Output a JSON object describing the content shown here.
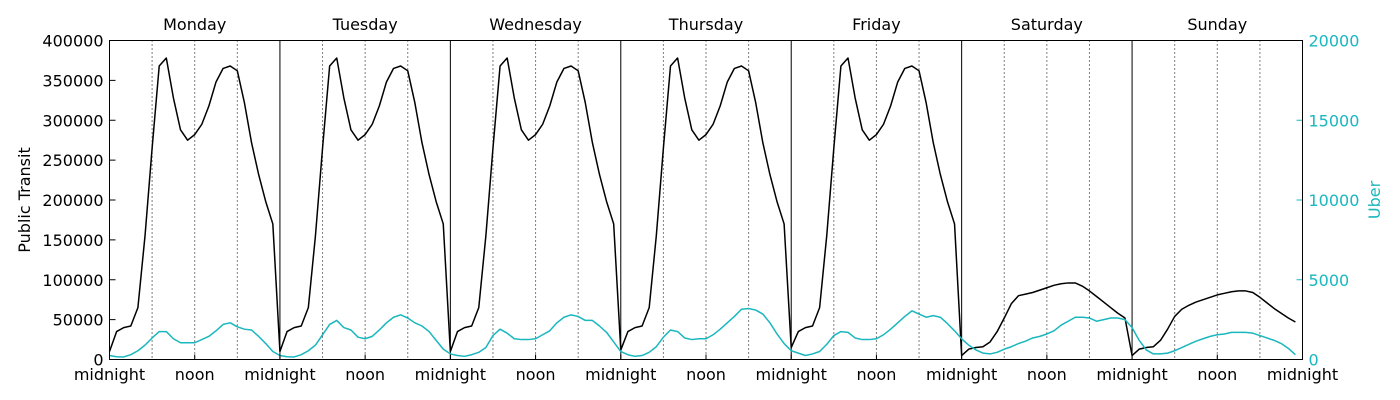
{
  "chart_data": {
    "type": "line",
    "days": [
      "Monday",
      "Tuesday",
      "Wednesday",
      "Thursday",
      "Friday",
      "Saturday",
      "Sunday"
    ],
    "hours_per_day": 24,
    "x_tick_labels": [
      "midnight",
      "noon",
      "midnight",
      "noon",
      "midnight",
      "noon",
      "midnight",
      "noon",
      "midnight",
      "noon",
      "midnight",
      "noon",
      "midnight",
      "noon",
      "midnight"
    ],
    "y_left": {
      "label": "Public Transit",
      "lim": [
        0,
        400000
      ],
      "ticks": [
        0,
        50000,
        100000,
        150000,
        200000,
        250000,
        300000,
        350000,
        400000
      ],
      "color": "#000000"
    },
    "y_right": {
      "label": "Uber",
      "lim": [
        0,
        20000
      ],
      "ticks": [
        0,
        5000,
        10000,
        15000,
        20000
      ],
      "color": "#1ab7bf"
    },
    "series": [
      {
        "name": "Public Transit",
        "axis": "left",
        "color": "#000000",
        "values": [
          10000,
          35000,
          40000,
          42000,
          65000,
          155000,
          265000,
          368000,
          378000,
          328000,
          288000,
          275000,
          282000,
          295000,
          318000,
          348000,
          365000,
          368000,
          362000,
          322000,
          272000,
          232000,
          198000,
          170000,
          10000,
          35000,
          40000,
          42000,
          65000,
          155000,
          265000,
          368000,
          378000,
          328000,
          288000,
          275000,
          282000,
          295000,
          318000,
          348000,
          365000,
          368000,
          362000,
          322000,
          272000,
          232000,
          198000,
          170000,
          10000,
          35000,
          40000,
          42000,
          65000,
          155000,
          265000,
          368000,
          378000,
          328000,
          288000,
          275000,
          282000,
          295000,
          318000,
          348000,
          365000,
          368000,
          362000,
          322000,
          272000,
          232000,
          198000,
          170000,
          12000,
          35000,
          40000,
          42000,
          65000,
          155000,
          265000,
          368000,
          378000,
          328000,
          288000,
          275000,
          282000,
          295000,
          318000,
          348000,
          365000,
          368000,
          362000,
          322000,
          272000,
          232000,
          198000,
          170000,
          15000,
          35000,
          40000,
          42000,
          65000,
          155000,
          265000,
          368000,
          378000,
          328000,
          288000,
          275000,
          282000,
          295000,
          318000,
          348000,
          365000,
          368000,
          362000,
          322000,
          272000,
          232000,
          198000,
          170000,
          5000,
          13000,
          15000,
          16000,
          22000,
          35000,
          52000,
          70000,
          80000,
          82000,
          84000,
          87000,
          90000,
          93000,
          95000,
          96000,
          96000,
          92000,
          86000,
          79000,
          72000,
          65000,
          58000,
          52000,
          5000,
          13000,
          15000,
          16000,
          24000,
          38000,
          54000,
          63000,
          68000,
          72000,
          75000,
          78000,
          81000,
          83000,
          85000,
          86000,
          86000,
          84000,
          78000,
          71000,
          64000,
          58000,
          52000,
          47000
        ]
      },
      {
        "name": "Uber",
        "axis": "right",
        "color": "#1ab7bf",
        "values": [
          250,
          170,
          160,
          300,
          550,
          900,
          1350,
          1750,
          1750,
          1300,
          1050,
          1050,
          1050,
          1250,
          1450,
          1800,
          2200,
          2300,
          2050,
          1900,
          1850,
          1450,
          1000,
          500,
          250,
          170,
          160,
          300,
          550,
          900,
          1550,
          2200,
          2450,
          2000,
          1850,
          1400,
          1300,
          1450,
          1850,
          2300,
          2650,
          2800,
          2600,
          2300,
          2100,
          1750,
          1200,
          650,
          350,
          250,
          200,
          300,
          450,
          750,
          1500,
          1900,
          1650,
          1300,
          1250,
          1250,
          1300,
          1550,
          1800,
          2300,
          2650,
          2800,
          2700,
          2450,
          2450,
          2100,
          1700,
          1100,
          500,
          300,
          200,
          250,
          450,
          800,
          1400,
          1850,
          1750,
          1350,
          1250,
          1300,
          1300,
          1550,
          1900,
          2300,
          2700,
          3150,
          3200,
          3100,
          2850,
          2300,
          1600,
          1000,
          550,
          400,
          250,
          350,
          500,
          950,
          1500,
          1750,
          1700,
          1350,
          1250,
          1250,
          1300,
          1550,
          1900,
          2300,
          2700,
          3050,
          2850,
          2650,
          2750,
          2650,
          2250,
          1800,
          1300,
          900,
          600,
          400,
          350,
          450,
          650,
          800,
          1000,
          1150,
          1350,
          1450,
          1600,
          1800,
          2150,
          2400,
          2650,
          2650,
          2600,
          2400,
          2500,
          2600,
          2600,
          2500,
          2000,
          1200,
          600,
          350,
          350,
          400,
          550,
          750,
          950,
          1150,
          1300,
          1450,
          1550,
          1600,
          1700,
          1700,
          1700,
          1650,
          1500,
          1350,
          1200,
          1000,
          700,
          300
        ]
      }
    ],
    "grid": {
      "day_separators": "solid",
      "six_hour_lines": "dotted"
    },
    "legend": "none"
  }
}
